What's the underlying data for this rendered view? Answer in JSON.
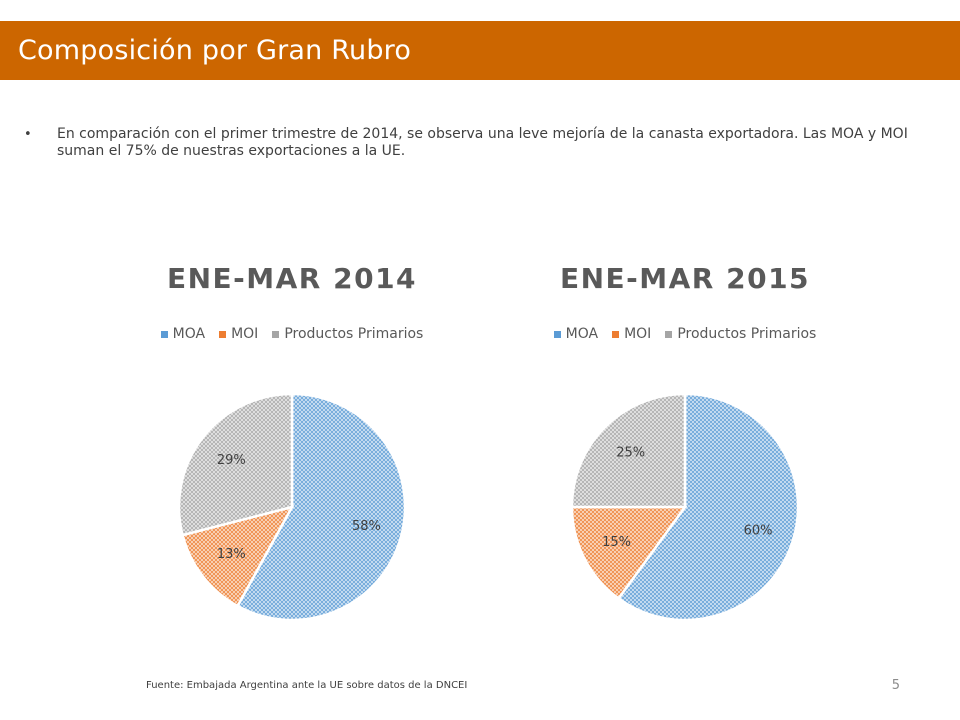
{
  "slide": {
    "title": "Composición por Gran Rubro",
    "bullet_text": "En  comparación con el primer trimestre de 2014, se observa una leve mejoría de la canasta exportadora. Las MOA y MOI suman el 75% de nuestras exportaciones a la UE.",
    "bullet_symbol": "•",
    "source": "Fuente: Embajada  Argentina ante la UE sobre datos de la DNCEI",
    "page_number": "5",
    "accent_color": "#CC6600"
  },
  "chart_data": [
    {
      "type": "pie",
      "title": "ENE-MAR 2014",
      "legend_position": "top",
      "categories": [
        "MOA",
        "MOI",
        "Productos Primarios"
      ],
      "values": [
        58,
        13,
        29
      ],
      "labels": [
        "58%",
        "13%",
        "29%"
      ],
      "colors": [
        "#5B9BD5",
        "#ED7D31",
        "#A5A5A5"
      ],
      "fill_pattern": "crosshatch"
    },
    {
      "type": "pie",
      "title": "ENE-MAR 2015",
      "legend_position": "top",
      "categories": [
        "MOA",
        "MOI",
        "Productos Primarios"
      ],
      "values": [
        60,
        15,
        25
      ],
      "labels": [
        "60%",
        "15%",
        "25%"
      ],
      "colors": [
        "#5B9BD5",
        "#ED7D31",
        "#A5A5A5"
      ],
      "fill_pattern": "crosshatch"
    }
  ]
}
